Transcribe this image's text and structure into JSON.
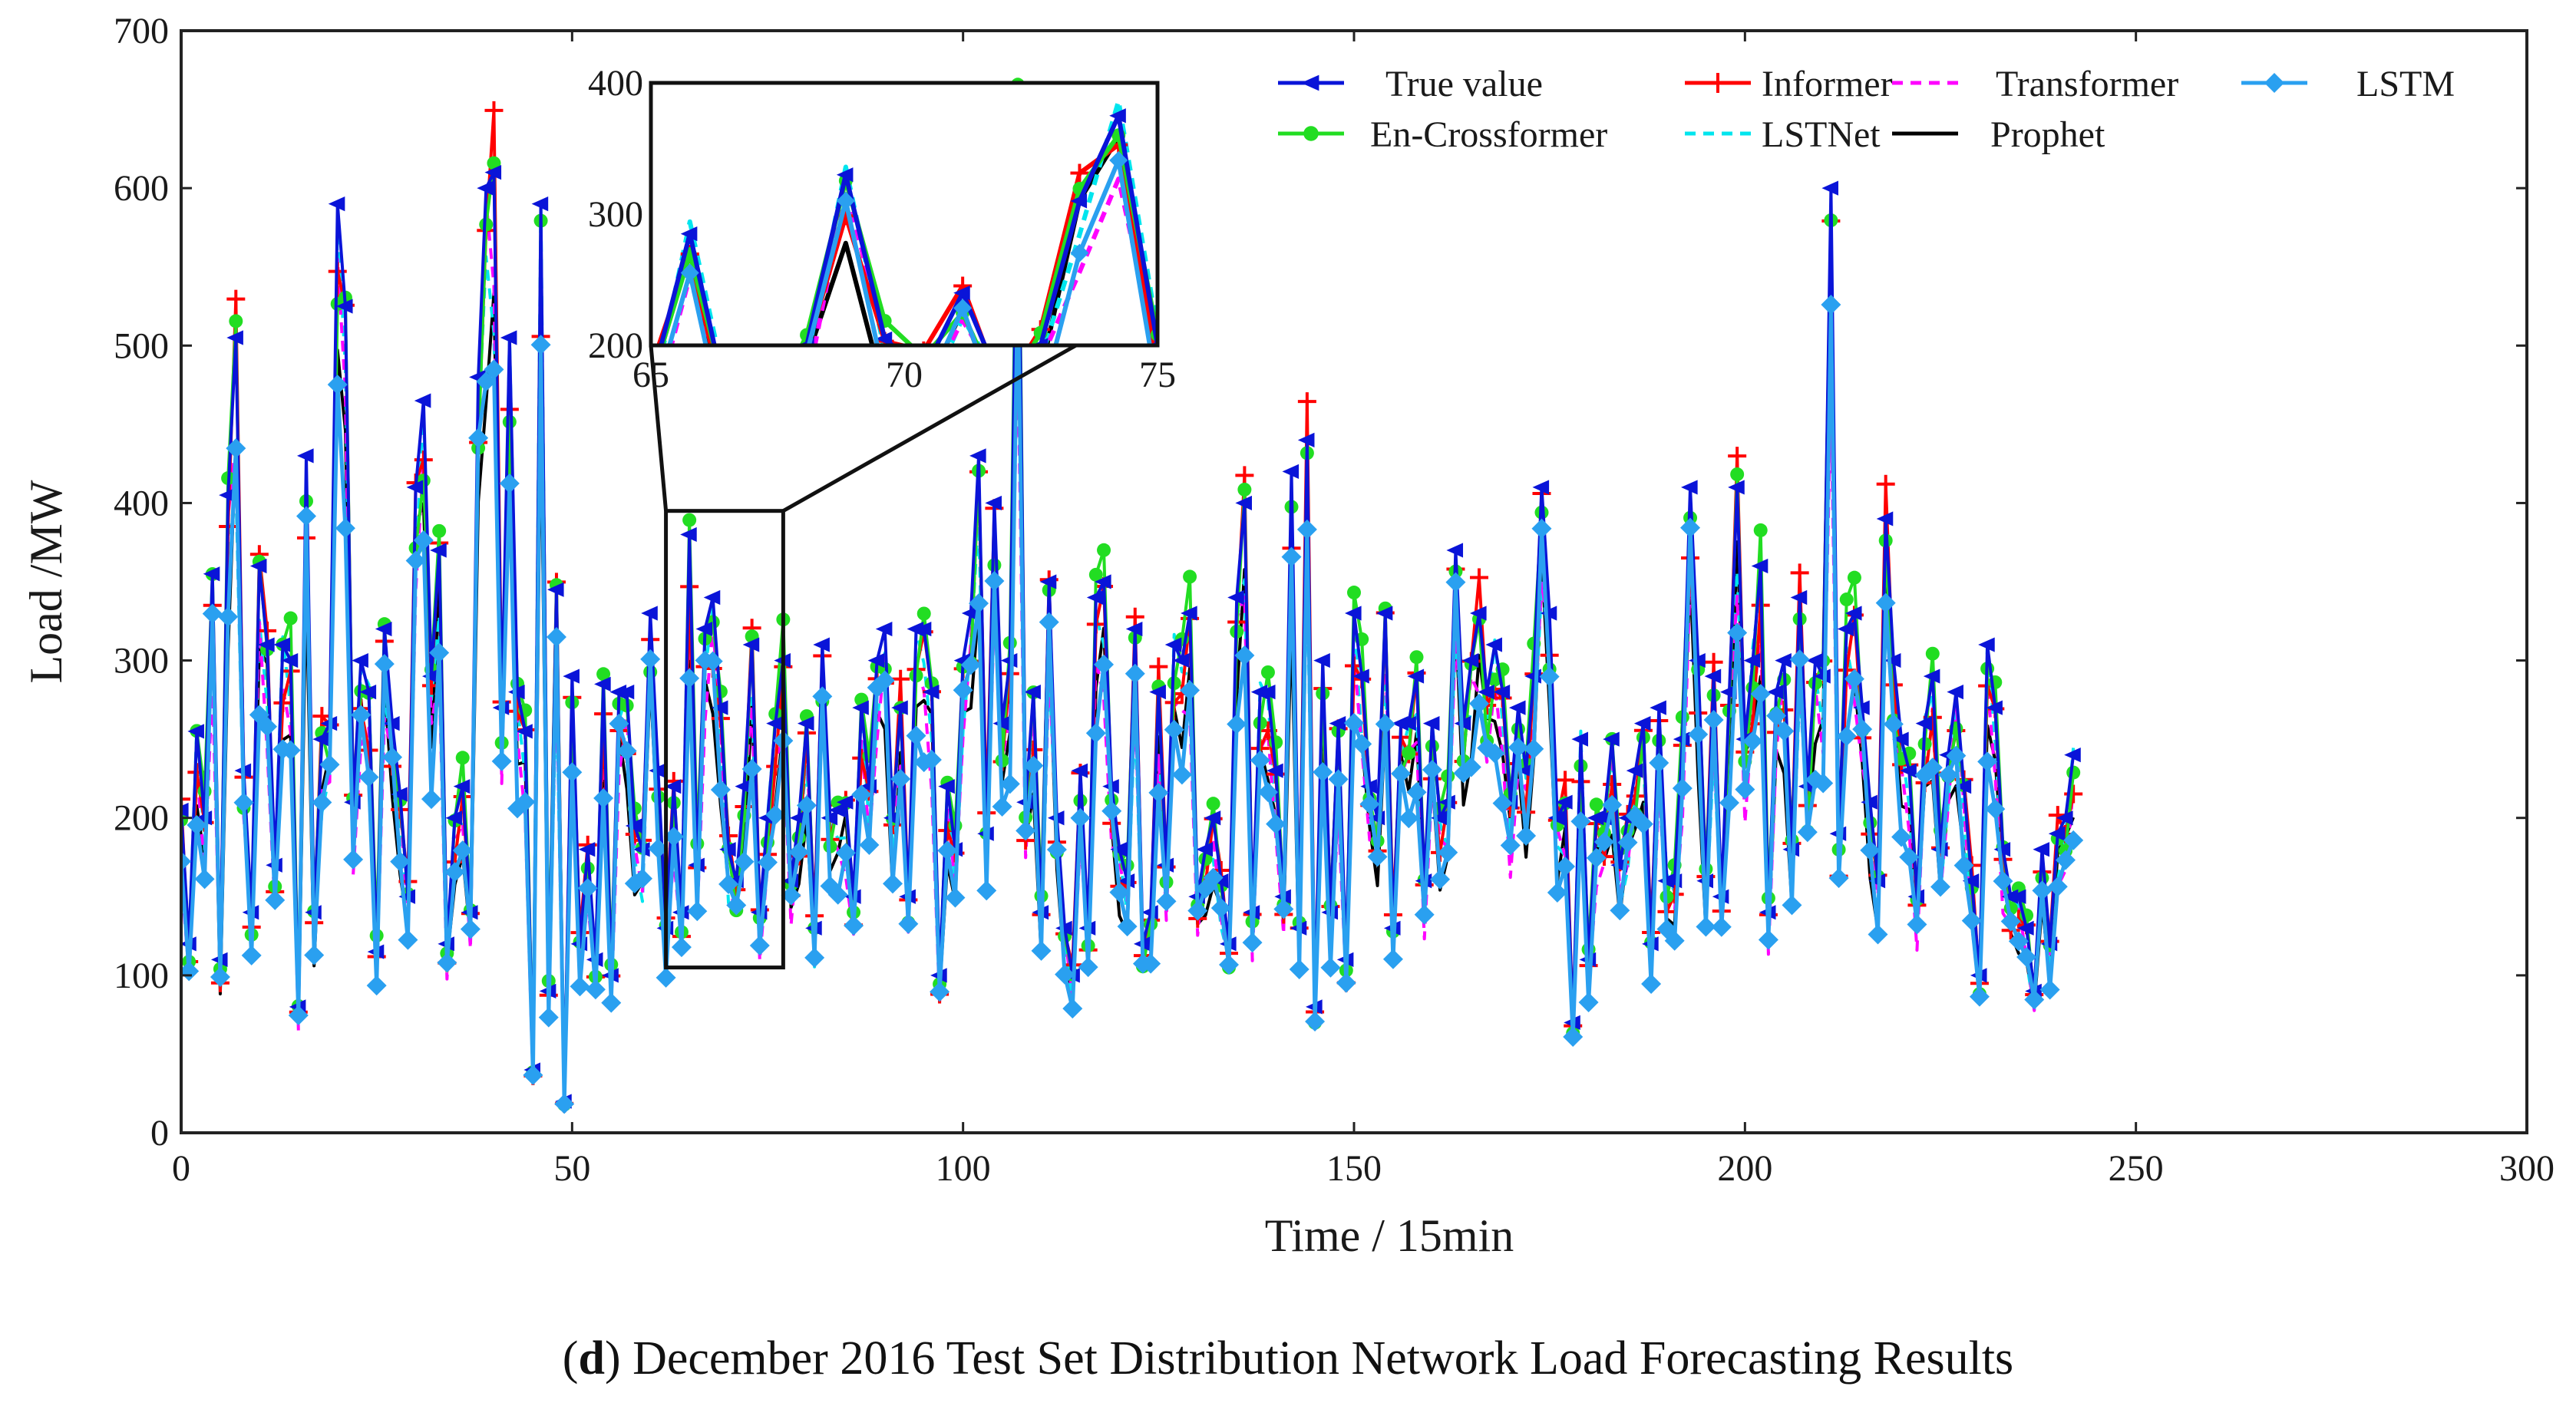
{
  "caption": {
    "panel_letter": "d",
    "text": "December 2016 Test Set Distribution Network Load Forecasting Results"
  },
  "chart_data": {
    "type": "line",
    "title": "",
    "xlabel": "Time  /  15min",
    "ylabel": "Load /MW",
    "xlim": [
      0,
      300
    ],
    "ylim": [
      0,
      700
    ],
    "xticks": [
      0,
      50,
      100,
      150,
      200,
      250,
      300
    ],
    "yticks": [
      0,
      100,
      200,
      300,
      400,
      500,
      600,
      700
    ],
    "legend_position": "top-right",
    "series": [
      {
        "name": "True value",
        "color": "#0a14d8",
        "marker": "left-triangle",
        "dash": "none",
        "scale": 1.0
      },
      {
        "name": "Informer",
        "color": "#ff0000",
        "marker": "plus",
        "dash": "none",
        "scale": 0.96
      },
      {
        "name": "Transformer",
        "color": "#ff00ff",
        "marker": "none",
        "dash": "dashed",
        "scale": 0.88
      },
      {
        "name": "LSTM",
        "color": "#2aa0f0",
        "marker": "diamond",
        "dash": "none",
        "scale": 0.84
      },
      {
        "name": "En-Crossformer",
        "color": "#22dd22",
        "marker": "circle",
        "dash": "none",
        "scale": 0.98
      },
      {
        "name": "LSTNet",
        "color": "#00e5ee",
        "marker": "none",
        "dash": "dashed",
        "scale": 0.92
      },
      {
        "name": "Prophet",
        "color": "#000000",
        "marker": "none",
        "dash": "none",
        "scale": 0.86
      }
    ],
    "true_values": [
      205,
      120,
      255,
      200,
      355,
      110,
      405,
      505,
      230,
      140,
      360,
      310,
      170,
      310,
      300,
      80,
      430,
      140,
      250,
      260,
      590,
      525,
      210,
      300,
      280,
      115,
      320,
      260,
      215,
      150,
      410,
      465,
      290,
      370,
      120,
      200,
      220,
      140,
      480,
      600,
      610,
      270,
      505,
      280,
      255,
      40,
      590,
      90,
      345,
      20,
      290,
      120,
      180,
      110,
      285,
      100,
      280,
      280,
      195,
      180,
      330,
      230,
      130,
      220,
      140,
      380,
      170,
      320,
      340,
      270,
      180,
      160,
      220,
      310,
      140,
      200,
      260,
      300,
      160,
      200,
      260,
      130,
      310,
      200,
      205,
      210,
      150,
      270,
      220,
      300,
      320,
      200,
      270,
      150,
      320,
      320,
      280,
      100,
      220,
      180,
      300,
      330,
      430,
      190,
      400,
      260,
      300,
      640,
      210,
      280,
      140,
      350,
      200,
      130,
      100,
      230,
      130,
      340,
      350,
      220,
      180,
      160,
      320,
      120,
      140,
      280,
      170,
      310,
      300,
      330,
      150,
      180,
      200,
      160,
      120,
      340,
      400,
      140,
      280,
      280,
      230,
      150,
      420,
      130,
      440,
      80,
      300,
      140,
      260,
      110,
      330,
      290,
      220,
      200,
      330,
      130,
      260,
      260,
      290,
      160,
      260,
      200,
      210,
      370,
      260,
      300,
      330,
      280,
      310,
      280,
      210,
      270,
      230,
      290,
      410,
      330,
      200,
      210,
      70,
      250,
      110,
      200,
      200,
      250,
      170,
      200,
      230,
      260,
      120,
      270,
      160,
      160,
      250,
      410,
      300,
      160,
      290,
      150,
      280,
      410,
      250,
      300,
      360,
      140,
      280,
      300,
      180,
      340,
      220,
      300,
      290,
      600,
      190,
      320,
      330,
      270,
      210,
      160,
      390,
      300,
      250,
      230,
      150,
      260,
      290,
      180,
      240,
      280,
      220,
      160,
      100,
      310,
      270,
      180,
      150,
      150,
      130,
      90,
      180,
      120,
      190,
      200,
      240
    ],
    "inset": {
      "xlim": [
        65,
        75
      ],
      "ylim": [
        200,
        400
      ],
      "xticks": [
        65,
        70,
        75
      ],
      "yticks": [
        200,
        300,
        400
      ],
      "values": [
        170,
        285,
        150,
        130,
        200,
        330,
        205,
        180,
        240,
        170,
        200,
        310,
        375,
        200
      ]
    }
  }
}
